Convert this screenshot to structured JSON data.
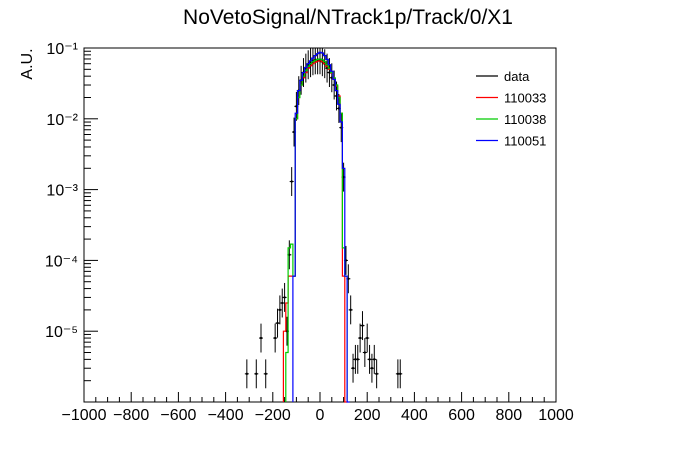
{
  "chart_data": {
    "type": "line",
    "title": "NoVetoSignal/NTrack1p/Track/0/X1",
    "xlabel": "",
    "ylabel": "A.U.",
    "xlim": [
      -1000,
      1000
    ],
    "ylim": [
      1e-06,
      0.1
    ],
    "yscale": "log",
    "x_tick_labels": [
      "−1000",
      "−800",
      "−600",
      "−400",
      "−200",
      "0",
      "200",
      "400",
      "600",
      "800",
      "1000"
    ],
    "y_tick_labels": [
      "10⁻⁵",
      "10⁻⁴",
      "10⁻³",
      "10⁻²",
      "10⁻¹"
    ],
    "legend_position": "top-right",
    "grid": false,
    "series": [
      {
        "name": "data",
        "style": "points",
        "color": "#000000",
        "x": [
          -310,
          -270,
          -250,
          -230,
          -190,
          -180,
          -170,
          -160,
          -150,
          -140,
          -130,
          -120,
          -110,
          -100,
          -90,
          -80,
          -70,
          -60,
          -50,
          -40,
          -30,
          -20,
          -10,
          0,
          10,
          20,
          30,
          40,
          50,
          60,
          70,
          80,
          90,
          100,
          110,
          120,
          130,
          140,
          150,
          160,
          170,
          180,
          190,
          200,
          210,
          220,
          230,
          240,
          330,
          340
        ],
        "y": [
          2.5e-06,
          2.5e-06,
          8e-06,
          2.5e-06,
          8e-06,
          1.3e-05,
          2e-05,
          2.5e-05,
          3e-05,
          1e-05,
          0.00012,
          0.0013,
          0.0065,
          0.015,
          0.025,
          0.035,
          0.045,
          0.052,
          0.058,
          0.062,
          0.066,
          0.068,
          0.068,
          0.068,
          0.064,
          0.06,
          0.052,
          0.045,
          0.038,
          0.03,
          0.021,
          0.014,
          0.0075,
          0.0015,
          0.0001,
          5.5e-05,
          2e-05,
          3e-06,
          4e-06,
          4e-06,
          8e-06,
          1.2e-05,
          5e-06,
          8e-06,
          4e-06,
          3e-06,
          4e-06,
          2.5e-06,
          2.5e-06,
          2.5e-06
        ]
      },
      {
        "name": "110033",
        "style": "step",
        "color": "#ff0000",
        "x": [
          -150,
          -140,
          -130,
          -120,
          -110,
          -100,
          -90,
          -80,
          -70,
          -60,
          -50,
          -40,
          -30,
          -20,
          -10,
          0,
          10,
          20,
          30,
          40,
          50,
          60,
          70,
          80,
          90,
          100,
          110
        ],
        "y": [
          1e-05,
          2.5e-05,
          6e-05,
          6e-05,
          6e-05,
          0.01,
          0.02,
          0.03,
          0.038,
          0.045,
          0.052,
          0.056,
          0.06,
          0.063,
          0.065,
          0.066,
          0.064,
          0.06,
          0.055,
          0.05,
          0.044,
          0.037,
          0.029,
          0.021,
          0.012,
          6e-05,
          1e-06
        ]
      },
      {
        "name": "110038",
        "style": "step",
        "color": "#00cc00",
        "x": [
          -140,
          -130,
          -120,
          -110,
          -100,
          -90,
          -80,
          -70,
          -60,
          -50,
          -40,
          -30,
          -20,
          -10,
          0,
          10,
          20,
          30,
          40,
          50,
          60,
          70,
          80,
          90,
          100,
          110
        ],
        "y": [
          5e-06,
          0.00015,
          0.00017,
          6e-05,
          0.01,
          0.02,
          0.03,
          0.04,
          0.048,
          0.055,
          0.06,
          0.064,
          0.067,
          0.069,
          0.07,
          0.068,
          0.064,
          0.058,
          0.052,
          0.045,
          0.038,
          0.03,
          0.02,
          0.012,
          0.00015,
          6e-05
        ]
      },
      {
        "name": "110051",
        "style": "step",
        "color": "#0000ff",
        "x": [
          -110,
          -100,
          -90,
          -80,
          -70,
          -60,
          -50,
          -40,
          -30,
          -20,
          -10,
          0,
          10,
          20,
          30,
          40,
          50,
          60,
          70,
          80,
          90,
          100,
          110,
          120
        ],
        "y": [
          6e-05,
          0.012,
          0.025,
          0.035,
          0.045,
          0.053,
          0.06,
          0.066,
          0.072,
          0.078,
          0.083,
          0.087,
          0.085,
          0.078,
          0.069,
          0.058,
          0.047,
          0.036,
          0.025,
          0.016,
          0.009,
          0.002,
          6e-05,
          1e-06
        ]
      }
    ]
  }
}
